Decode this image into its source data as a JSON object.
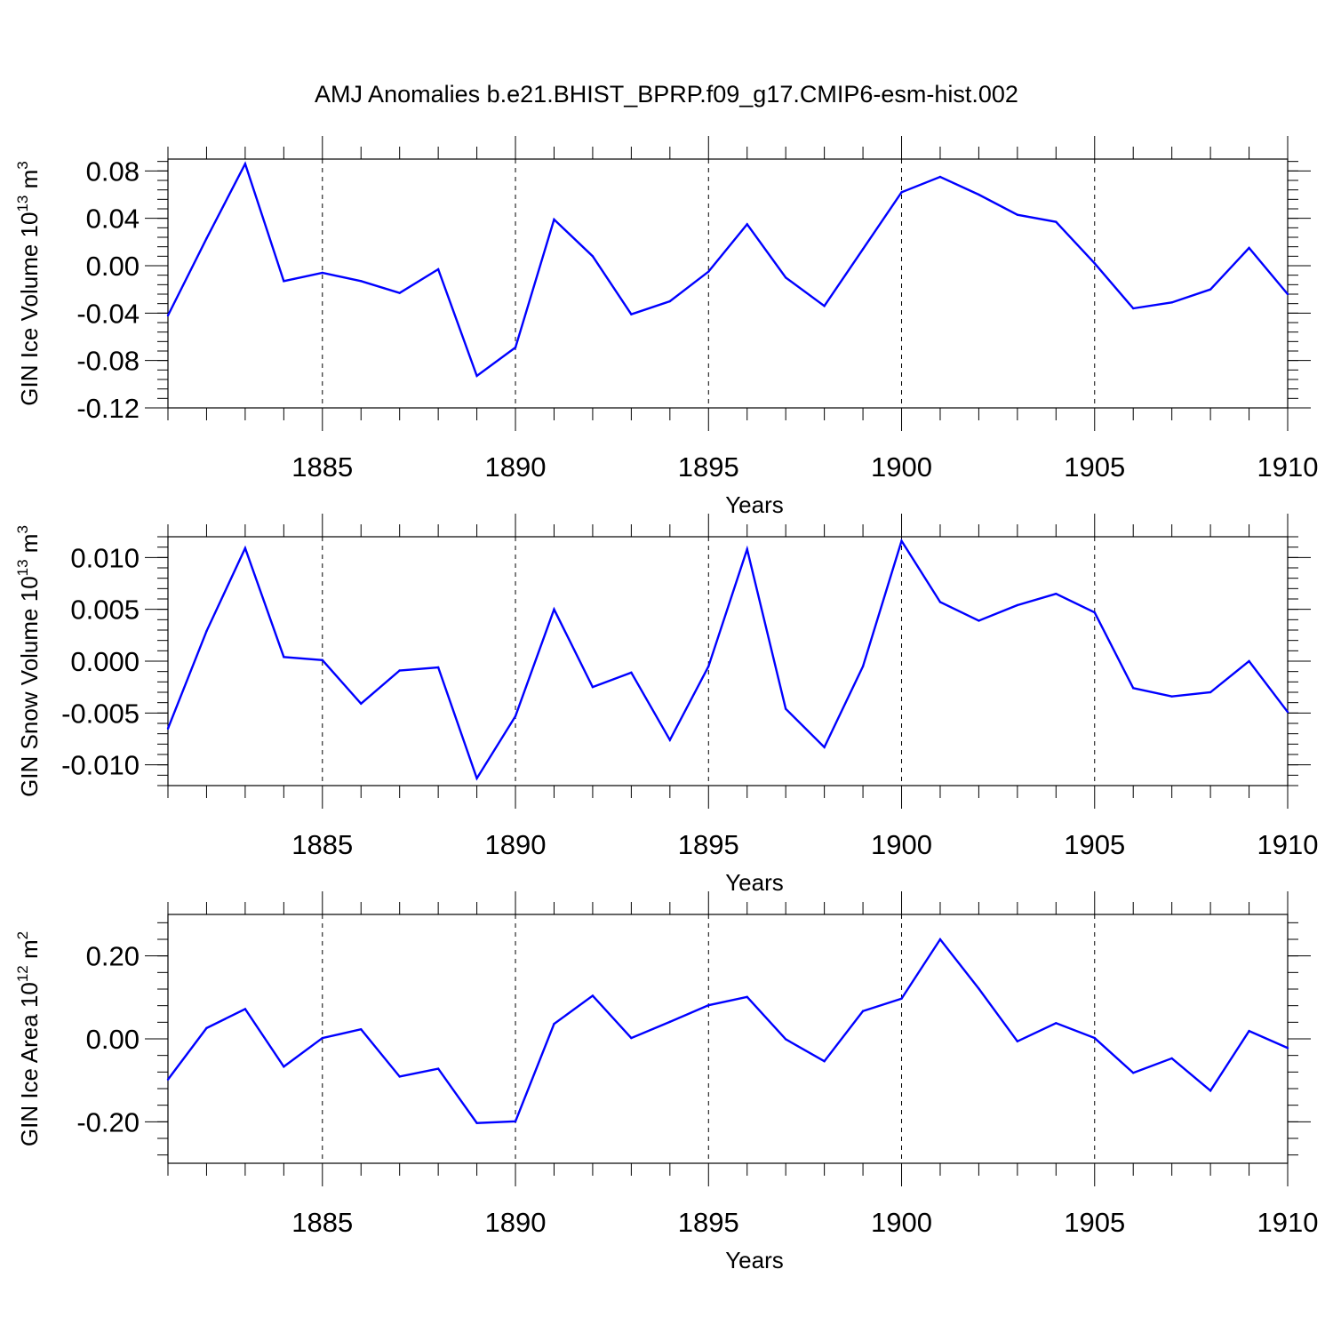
{
  "title": "AMJ Anomalies b.e21.BHIST_BPRP.f09_g17.CMIP6-esm-hist.002",
  "line_color": "#0000ff",
  "chart_data": [
    {
      "type": "line",
      "ylabel": "GIN Ice Volume 10",
      "ylabel_exp": "13",
      "ylabel_unit": " m",
      "ylabel_unit_exp": "3",
      "xlabel": "Years",
      "xlim": [
        1881,
        1910
      ],
      "ylim": [
        -0.12,
        0.09
      ],
      "ytick_values": [
        0.08,
        0.04,
        0.0,
        -0.04,
        -0.08,
        -0.12
      ],
      "ytick_labels": [
        "0.08",
        "0.04",
        "0.00",
        "-0.04",
        "-0.08",
        "-0.12"
      ],
      "xtick_values": [
        1885,
        1890,
        1895,
        1900,
        1905,
        1910
      ],
      "xtick_labels": [
        "1885",
        "1890",
        "1895",
        "1900",
        "1905",
        "1910"
      ],
      "gridlines_x": [
        1885,
        1890,
        1895,
        1900,
        1905
      ],
      "x": [
        1881,
        1882,
        1883,
        1884,
        1885,
        1886,
        1887,
        1888,
        1889,
        1890,
        1891,
        1892,
        1893,
        1894,
        1895,
        1896,
        1897,
        1898,
        1899,
        1900,
        1901,
        1902,
        1903,
        1904,
        1905,
        1906,
        1907,
        1908,
        1909,
        1910
      ],
      "values": [
        -0.042,
        0.023,
        0.086,
        -0.013,
        -0.006,
        -0.013,
        -0.023,
        -0.003,
        -0.093,
        -0.069,
        0.039,
        0.008,
        -0.041,
        -0.03,
        -0.005,
        0.035,
        -0.01,
        -0.034,
        0.014,
        0.062,
        0.075,
        0.06,
        0.043,
        0.037,
        0.002,
        -0.036,
        -0.031,
        -0.02,
        0.015,
        -0.024
      ]
    },
    {
      "type": "line",
      "ylabel": "GIN Snow Volume 10",
      "ylabel_exp": "13",
      "ylabel_unit": " m",
      "ylabel_unit_exp": "3",
      "xlabel": "Years",
      "xlim": [
        1881,
        1910
      ],
      "ylim": [
        -0.012,
        0.012
      ],
      "ytick_values": [
        0.01,
        0.005,
        0.0,
        -0.005,
        -0.01
      ],
      "ytick_labels": [
        "0.010",
        "0.005",
        "0.000",
        "-0.005",
        "-0.010"
      ],
      "xtick_values": [
        1885,
        1890,
        1895,
        1900,
        1905,
        1910
      ],
      "xtick_labels": [
        "1885",
        "1890",
        "1895",
        "1900",
        "1905",
        "1910"
      ],
      "gridlines_x": [
        1885,
        1890,
        1895,
        1900,
        1905
      ],
      "x": [
        1881,
        1882,
        1883,
        1884,
        1885,
        1886,
        1887,
        1888,
        1889,
        1890,
        1891,
        1892,
        1893,
        1894,
        1895,
        1896,
        1897,
        1898,
        1899,
        1900,
        1901,
        1902,
        1903,
        1904,
        1905,
        1906,
        1907,
        1908,
        1909,
        1910
      ],
      "values": [
        -0.0065,
        0.0029,
        0.0109,
        0.0004,
        0.0001,
        -0.0041,
        -0.0009,
        -0.0006,
        -0.0113,
        -0.0053,
        0.005,
        -0.0025,
        -0.0011,
        -0.0076,
        -0.0005,
        0.0108,
        -0.0046,
        -0.0083,
        -0.0005,
        0.0116,
        0.0057,
        0.0039,
        0.0054,
        0.0065,
        0.0047,
        -0.0026,
        -0.0034,
        -0.003,
        0.0,
        -0.0049
      ]
    },
    {
      "type": "line",
      "ylabel": "GIN Ice Area 10",
      "ylabel_exp": "12",
      "ylabel_unit": " m",
      "ylabel_unit_exp": "2",
      "xlabel": "Years",
      "xlim": [
        1881,
        1910
      ],
      "ylim": [
        -0.3,
        0.3
      ],
      "ytick_values": [
        0.2,
        0.0,
        -0.2
      ],
      "ytick_labels": [
        "0.20",
        "0.00",
        "-0.20"
      ],
      "xtick_values": [
        1885,
        1890,
        1895,
        1900,
        1905,
        1910
      ],
      "xtick_labels": [
        "1885",
        "1890",
        "1895",
        "1900",
        "1905",
        "1910"
      ],
      "gridlines_x": [
        1885,
        1890,
        1895,
        1900,
        1905
      ],
      "x": [
        1881,
        1882,
        1883,
        1884,
        1885,
        1886,
        1887,
        1888,
        1889,
        1890,
        1891,
        1892,
        1893,
        1894,
        1895,
        1896,
        1897,
        1898,
        1899,
        1900,
        1901,
        1902,
        1903,
        1904,
        1905,
        1906,
        1907,
        1908,
        1909,
        1910
      ],
      "values": [
        -0.098,
        0.026,
        0.072,
        -0.067,
        0.002,
        0.023,
        -0.091,
        -0.072,
        -0.203,
        -0.199,
        0.036,
        0.104,
        0.002,
        0.041,
        0.081,
        0.101,
        -0.001,
        -0.054,
        0.067,
        0.097,
        0.24,
        0.121,
        -0.006,
        0.038,
        0.002,
        -0.082,
        -0.047,
        -0.125,
        0.019,
        -0.022
      ]
    }
  ]
}
